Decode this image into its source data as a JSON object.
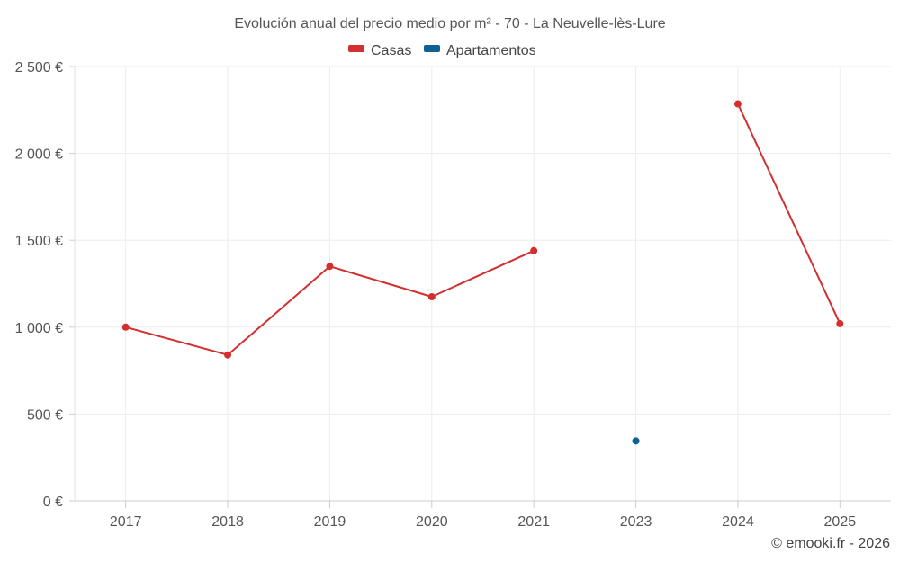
{
  "chart_data": {
    "type": "line",
    "title": "Evolución anual del precio medio por m² - 70 - La Neuvelle-lès-Lure",
    "categories": [
      "2017",
      "2018",
      "2019",
      "2020",
      "2021",
      "2023",
      "2024",
      "2025"
    ],
    "y_ticks": [
      "0 €",
      "500 €",
      "1 000 €",
      "1 500 €",
      "2 000 €",
      "2 500 €"
    ],
    "ylim": [
      0,
      2500
    ],
    "y_tick_step": 500,
    "grid": true,
    "legend_position": "top-center",
    "series": [
      {
        "name": "Casas",
        "color": "#d32f2f",
        "values": [
          1000,
          840,
          1350,
          1175,
          1440,
          null,
          2285,
          1020
        ]
      },
      {
        "name": "Apartamentos",
        "color": "#0d6199",
        "values": [
          null,
          null,
          null,
          null,
          null,
          345,
          null,
          null
        ]
      }
    ],
    "credit": "© emooki.fr - 2026"
  }
}
